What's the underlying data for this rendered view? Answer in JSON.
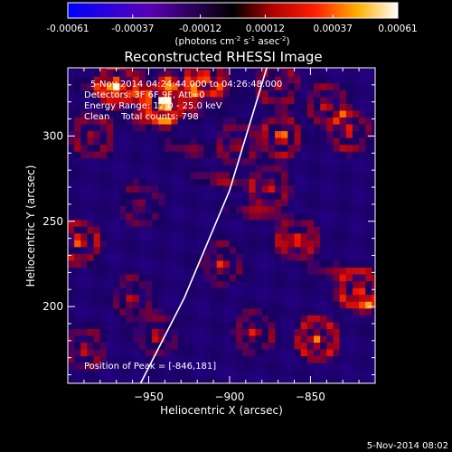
{
  "chart_data": {
    "type": "heatmap",
    "title": "Reconstructed RHESSI Image",
    "xlabel": "Heliocentric X (arcsec)",
    "ylabel": "Heliocentric Y (arcsec)",
    "xlim": [
      -1000,
      -810
    ],
    "ylim": [
      155,
      340
    ],
    "x_ticks": [
      -950,
      -900,
      -850
    ],
    "y_ticks": [
      200,
      250,
      300
    ],
    "colorbar": {
      "ticks": [
        "-0.00061",
        "-0.00037",
        "-0.00012",
        "0.00012",
        "0.00037",
        "0.00061"
      ],
      "range": [
        -0.00061,
        0.00061
      ],
      "units_line1": "(photons cm",
      "units_exp1": "-2",
      "units_mid": " s",
      "units_exp2": "-1",
      "units_mid2": " asec",
      "units_exp3": "-2",
      "units_end": ")"
    },
    "annotations": [
      "5-Nov-2014 04:24:44.000 to 04:26:48.000",
      "Detectors: 3F 6F 9F, Att=0",
      "Energy Range: 12.0 - 25.0 keV",
      "Clean    Total counts: 798"
    ],
    "peak_label": "Position of Peak = [-846,181]",
    "peak": [
      -846,
      181
    ],
    "limb_line": [
      [
        -955,
        155
      ],
      [
        -928,
        205
      ],
      [
        -900,
        268
      ],
      [
        -877,
        340
      ]
    ],
    "peaks": [
      {
        "x": -993,
        "y": 238,
        "v": 0.00055
      },
      {
        "x": -985,
        "y": 300,
        "v": 0.0004
      },
      {
        "x": -970,
        "y": 330,
        "v": 0.00055
      },
      {
        "x": -940,
        "y": 320,
        "v": 0.0006
      },
      {
        "x": -915,
        "y": 335,
        "v": 0.0005
      },
      {
        "x": -955,
        "y": 260,
        "v": 0.0003
      },
      {
        "x": -960,
        "y": 205,
        "v": 0.00035
      },
      {
        "x": -945,
        "y": 183,
        "v": 0.00035
      },
      {
        "x": -905,
        "y": 225,
        "v": 0.0004
      },
      {
        "x": -895,
        "y": 295,
        "v": 0.00035
      },
      {
        "x": -875,
        "y": 270,
        "v": 0.0004
      },
      {
        "x": -868,
        "y": 300,
        "v": 0.00055
      },
      {
        "x": -840,
        "y": 318,
        "v": 0.0004
      },
      {
        "x": -826,
        "y": 303,
        "v": 0.00045
      },
      {
        "x": -858,
        "y": 240,
        "v": 0.00035
      },
      {
        "x": -885,
        "y": 185,
        "v": 0.0004
      },
      {
        "x": -846,
        "y": 181,
        "v": 0.00061
      },
      {
        "x": -820,
        "y": 210,
        "v": 0.0005
      },
      {
        "x": -870,
        "y": 330,
        "v": 0.0004
      },
      {
        "x": -990,
        "y": 175,
        "v": 0.0004
      }
    ]
  },
  "footer_date": "5-Nov-2014 08:02"
}
